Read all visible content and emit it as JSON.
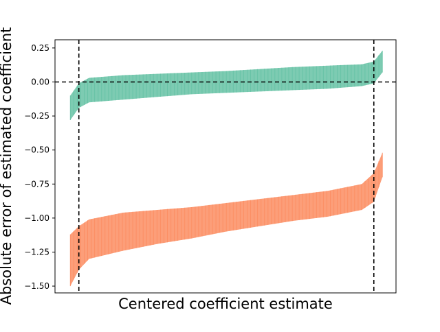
{
  "chart_data": {
    "type": "area",
    "title": "",
    "xlabel": "Centered coefficient estimate",
    "ylabel": "Absolute error of estimated coefficient",
    "ylim": [
      -1.55,
      0.31
    ],
    "xlim": [
      0,
      1
    ],
    "yticks": [
      0.25,
      0.0,
      -0.25,
      -0.5,
      -0.75,
      -1.0,
      -1.25,
      -1.5
    ],
    "ytick_labels": [
      "0.25",
      "0.00",
      "−0.25",
      "−0.50",
      "−0.75",
      "−1.00",
      "−1.25",
      "−1.50"
    ],
    "reference_lines": {
      "horizontal_y": 0.0,
      "vertical_x": [
        0.07,
        0.935
      ]
    },
    "grid": false,
    "colors": {
      "green": "#66c2a5",
      "orange": "#fc8d62",
      "reference": "#000000"
    },
    "series": [
      {
        "x": [
          0.045,
          0.07,
          0.1,
          0.2,
          0.3,
          0.4,
          0.5,
          0.6,
          0.7,
          0.8,
          0.9,
          0.935,
          0.96
        ],
        "upper": [
          -0.1,
          -0.01,
          0.03,
          0.05,
          0.06,
          0.07,
          0.08,
          0.095,
          0.11,
          0.12,
          0.13,
          0.15,
          0.23
        ],
        "lower": [
          -0.28,
          -0.19,
          -0.15,
          -0.13,
          -0.11,
          -0.09,
          -0.08,
          -0.07,
          -0.06,
          -0.05,
          -0.03,
          -0.01,
          0.07
        ],
        "color": "#66c2a5"
      },
      {
        "x": [
          0.045,
          0.07,
          0.1,
          0.2,
          0.3,
          0.4,
          0.5,
          0.6,
          0.7,
          0.8,
          0.9,
          0.935,
          0.96
        ],
        "upper": [
          -1.12,
          -1.06,
          -1.01,
          -0.96,
          -0.94,
          -0.92,
          -0.89,
          -0.86,
          -0.83,
          -0.8,
          -0.75,
          -0.67,
          -0.52
        ],
        "lower": [
          -1.5,
          -1.38,
          -1.3,
          -1.24,
          -1.19,
          -1.15,
          -1.1,
          -1.06,
          -1.02,
          -0.99,
          -0.94,
          -0.88,
          -0.7
        ],
        "color": "#fc8d62"
      }
    ]
  }
}
